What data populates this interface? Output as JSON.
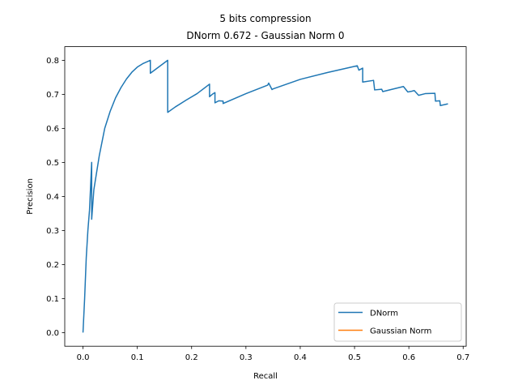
{
  "chart_data": {
    "type": "line",
    "title": "5 bits compression",
    "subtitle": "DNorm 0.672 - Gaussian Norm 0",
    "xlabel": "Recall",
    "ylabel": "Precision",
    "xlim": [
      -0.0336,
      0.7056
    ],
    "ylim": [
      -0.04,
      0.84
    ],
    "xticks": [
      0.0,
      0.1,
      0.2,
      0.3,
      0.4,
      0.5,
      0.6,
      0.7
    ],
    "xtick_labels": [
      "0.0",
      "0.1",
      "0.2",
      "0.3",
      "0.4",
      "0.5",
      "0.6",
      "0.7"
    ],
    "yticks": [
      0.0,
      0.1,
      0.2,
      0.3,
      0.4,
      0.5,
      0.6,
      0.7,
      0.8
    ],
    "ytick_labels": [
      "0.0",
      "0.1",
      "0.2",
      "0.3",
      "0.4",
      "0.5",
      "0.6",
      "0.7",
      "0.8"
    ],
    "grid": false,
    "legend_position": "lower-right",
    "series": [
      {
        "name": "DNorm",
        "color": "#1f77b4",
        "x": [
          0.0,
          0.003,
          0.006,
          0.009,
          0.012,
          0.016,
          0.016,
          0.02,
          0.03,
          0.04,
          0.05,
          0.06,
          0.07,
          0.08,
          0.09,
          0.1,
          0.11,
          0.124,
          0.124,
          0.14,
          0.156,
          0.156,
          0.17,
          0.19,
          0.21,
          0.233,
          0.233,
          0.238,
          0.243,
          0.243,
          0.25,
          0.258,
          0.258,
          0.3,
          0.34,
          0.342,
          0.348,
          0.35,
          0.4,
          0.45,
          0.505,
          0.508,
          0.515,
          0.515,
          0.535,
          0.537,
          0.55,
          0.552,
          0.59,
          0.596,
          0.598,
          0.605,
          0.61,
          0.618,
          0.63,
          0.648,
          0.649,
          0.657,
          0.658,
          0.672
        ],
        "y": [
          0.0,
          0.1,
          0.22,
          0.3,
          0.36,
          0.5,
          0.333,
          0.42,
          0.52,
          0.6,
          0.65,
          0.69,
          0.72,
          0.745,
          0.765,
          0.78,
          0.79,
          0.8,
          0.762,
          0.781,
          0.8,
          0.647,
          0.663,
          0.683,
          0.702,
          0.73,
          0.693,
          0.7,
          0.705,
          0.675,
          0.681,
          0.68,
          0.673,
          0.702,
          0.727,
          0.733,
          0.714,
          0.716,
          0.744,
          0.764,
          0.784,
          0.771,
          0.777,
          0.736,
          0.741,
          0.713,
          0.715,
          0.708,
          0.723,
          0.711,
          0.707,
          0.709,
          0.711,
          0.697,
          0.702,
          0.703,
          0.68,
          0.681,
          0.667,
          0.672
        ]
      },
      {
        "name": "Gaussian Norm",
        "color": "#ff7f0e",
        "x": [],
        "y": []
      }
    ]
  }
}
